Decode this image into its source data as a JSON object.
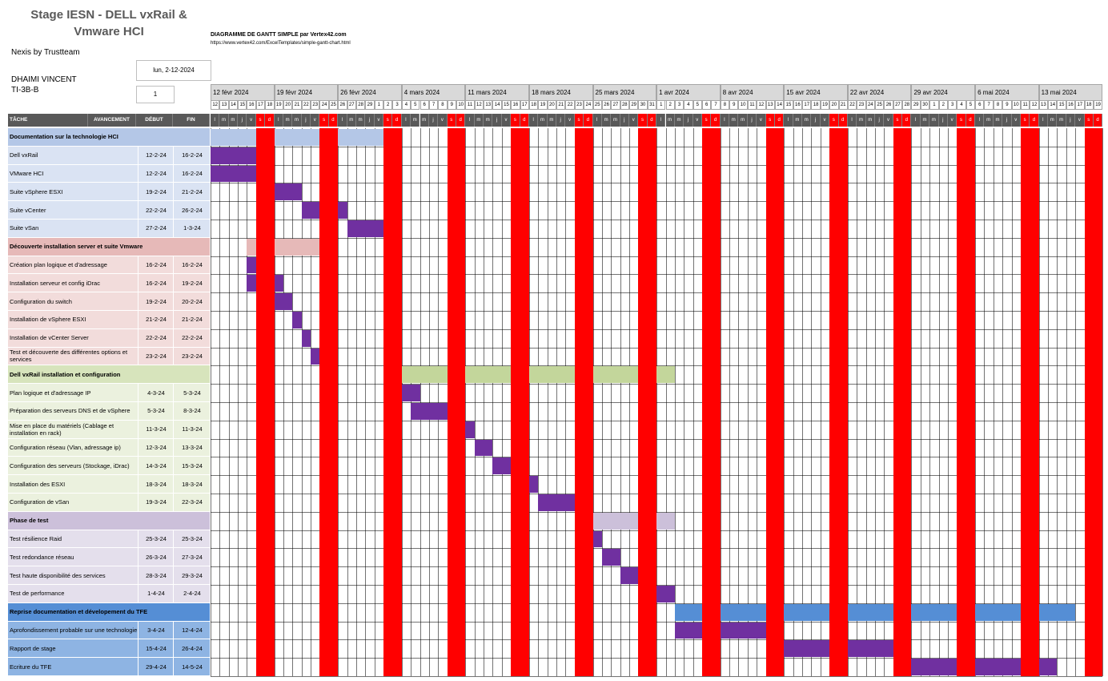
{
  "project": {
    "title_line1": "Stage IESN - DELL vxRail &",
    "title_line2": "Vmware HCI",
    "company": "Nexis by Trustteam",
    "lead": "DHAIMI VINCENT",
    "class": "TI-3B-B",
    "start_date": "lun, 2-12-2024",
    "week_offset": "1"
  },
  "template": {
    "title": "DIAGRAMME DE GANTT SIMPLE par Vertex42.com",
    "url": "https://www.vertex42.com/ExcelTemplates/simple-gantt-chart.html"
  },
  "headers": {
    "task": "TÂCHE",
    "progress": "AVANCEMENT",
    "start": "DÉBUT",
    "end": "FIN"
  },
  "weeks": [
    "12 févr 2024",
    "19 févr 2024",
    "26 févr 2024",
    "4 mars 2024",
    "11 mars 2024",
    "18 mars 2024",
    "25 mars 2024",
    "1 avr 2024",
    "8 avr 2024",
    "15 avr 2024",
    "22 avr 2024",
    "29 avr 2024",
    "6 mai 2024",
    "13 mai 2024"
  ],
  "day_numbers": [
    "12",
    "13",
    "14",
    "15",
    "16",
    "17",
    "18",
    "19",
    "20",
    "21",
    "22",
    "23",
    "24",
    "25",
    "26",
    "27",
    "28",
    "29",
    "1",
    "2",
    "3",
    "4",
    "5",
    "6",
    "7",
    "8",
    "9",
    "10",
    "11",
    "12",
    "13",
    "14",
    "15",
    "16",
    "17",
    "18",
    "19",
    "20",
    "21",
    "22",
    "23",
    "24",
    "25",
    "26",
    "27",
    "28",
    "29",
    "30",
    "31",
    "1",
    "2",
    "3",
    "4",
    "5",
    "6",
    "7",
    "8",
    "9",
    "10",
    "11",
    "12",
    "13",
    "14",
    "15",
    "16",
    "17",
    "18",
    "19",
    "20",
    "21",
    "22",
    "23",
    "24",
    "25",
    "26",
    "27",
    "28",
    "29",
    "30",
    "1",
    "2",
    "3",
    "4",
    "5",
    "6",
    "7",
    "8",
    "9",
    "10",
    "11",
    "12",
    "13",
    "14",
    "15",
    "16",
    "17",
    "18",
    "19"
  ],
  "day_letters": [
    "l",
    "m",
    "m",
    "j",
    "v",
    "s",
    "d"
  ],
  "colors": {
    "weekend": "#ff0000",
    "task_bar": "#7030a0",
    "header_dark": "#595959"
  },
  "rows": [
    {
      "kind": "phase",
      "name": "Documentation sur la technologie HCI",
      "bg": "#b4c7e7",
      "bar": "#b4c7e7",
      "start": 0,
      "end": 19
    },
    {
      "kind": "task",
      "name": "Dell vxRail",
      "start_label": "12-2-24",
      "end_label": "16-2-24",
      "bg": "#dae3f3",
      "start": 0,
      "end": 4
    },
    {
      "kind": "task",
      "name": "VMware HCI",
      "start_label": "12-2-24",
      "end_label": "16-2-24",
      "bg": "#dae3f3",
      "start": 0,
      "end": 4
    },
    {
      "kind": "task",
      "name": "Suite vSphere ESXI",
      "start_label": "19-2-24",
      "end_label": "21-2-24",
      "bg": "#dae3f3",
      "start": 7,
      "end": 9
    },
    {
      "kind": "task",
      "name": "Suite vCenter",
      "start_label": "22-2-24",
      "end_label": "26-2-24",
      "bg": "#dae3f3",
      "start": 10,
      "end": 14
    },
    {
      "kind": "task",
      "name": "Suite vSan",
      "start_label": "27-2-24",
      "end_label": "1-3-24",
      "bg": "#dae3f3",
      "start": 15,
      "end": 18
    },
    {
      "kind": "phase",
      "name": "Découverte installation server et suite Vmware",
      "bg": "#e6b9b8",
      "bar": "#e6b9b8",
      "start": 4,
      "end": 11
    },
    {
      "kind": "task",
      "name": "Création plan logique et d'adressage",
      "start_label": "16-2-24",
      "end_label": "16-2-24",
      "bg": "#f2dcdb",
      "start": 4,
      "end": 4
    },
    {
      "kind": "task",
      "name": "Installation serveur et config iDrac",
      "start_label": "16-2-24",
      "end_label": "19-2-24",
      "bg": "#f2dcdb",
      "start": 4,
      "end": 7
    },
    {
      "kind": "task",
      "name": "Configuration du switch",
      "start_label": "19-2-24",
      "end_label": "20-2-24",
      "bg": "#f2dcdb",
      "start": 7,
      "end": 8
    },
    {
      "kind": "task",
      "name": "Installation de vSphere ESXI",
      "start_label": "21-2-24",
      "end_label": "21-2-24",
      "bg": "#f2dcdb",
      "start": 9,
      "end": 9
    },
    {
      "kind": "task",
      "name": "Installation de vCenter Server",
      "start_label": "22-2-24",
      "end_label": "22-2-24",
      "bg": "#f2dcdb",
      "start": 10,
      "end": 10
    },
    {
      "kind": "task",
      "name": "Test et découverte des différentes options et services",
      "start_label": "23-2-24",
      "end_label": "23-2-24",
      "bg": "#f2dcdb",
      "start": 11,
      "end": 11
    },
    {
      "kind": "phase",
      "name": "Dell vxRail installation et configuration",
      "bg": "#d7e4bc",
      "bar": "#c3d69b",
      "start": 21,
      "end": 50
    },
    {
      "kind": "task",
      "name": "Plan logique et d'adressage IP",
      "start_label": "4-3-24",
      "end_label": "5-3-24",
      "bg": "#ebf1de",
      "start": 21,
      "end": 22
    },
    {
      "kind": "task",
      "name": "Préparation des serveurs DNS et de vSphere",
      "start_label": "5-3-24",
      "end_label": "8-3-24",
      "bg": "#ebf1de",
      "start": 22,
      "end": 25
    },
    {
      "kind": "task",
      "name": "Mise en place du matériels (Cablage et installation en rack)",
      "start_label": "11-3-24",
      "end_label": "11-3-24",
      "bg": "#ebf1de",
      "start": 28,
      "end": 28
    },
    {
      "kind": "task",
      "name": "Configuration réseau (Vlan, adressage ip)",
      "start_label": "12-3-24",
      "end_label": "13-3-24",
      "bg": "#ebf1de",
      "start": 29,
      "end": 30
    },
    {
      "kind": "task",
      "name": "Configuration des serveurs (Stockage, iDrac)",
      "start_label": "14-3-24",
      "end_label": "15-3-24",
      "bg": "#ebf1de",
      "start": 31,
      "end": 32
    },
    {
      "kind": "task",
      "name": "Installation des ESXI",
      "start_label": "18-3-24",
      "end_label": "18-3-24",
      "bg": "#ebf1de",
      "start": 35,
      "end": 35
    },
    {
      "kind": "task",
      "name": "Configuration de vSan",
      "start_label": "19-3-24",
      "end_label": "22-3-24",
      "bg": "#ebf1de",
      "start": 36,
      "end": 39
    },
    {
      "kind": "phase",
      "name": "Phase de test",
      "bg": "#ccc0da",
      "bar": "#ccc0da",
      "start": 42,
      "end": 50
    },
    {
      "kind": "task",
      "name": "Test résilience Raid",
      "start_label": "25-3-24",
      "end_label": "25-3-24",
      "bg": "#e4dfec",
      "start": 42,
      "end": 42
    },
    {
      "kind": "task",
      "name": "Test redondance réseau",
      "start_label": "26-3-24",
      "end_label": "27-3-24",
      "bg": "#e4dfec",
      "start": 43,
      "end": 44
    },
    {
      "kind": "task",
      "name": "Test haute disponibilité des services",
      "start_label": "28-3-24",
      "end_label": "29-3-24",
      "bg": "#e4dfec",
      "start": 45,
      "end": 46
    },
    {
      "kind": "task",
      "name": "Test de performance",
      "start_label": "1-4-24",
      "end_label": "2-4-24",
      "bg": "#e4dfec",
      "start": 49,
      "end": 50
    },
    {
      "kind": "phase",
      "name": "Reprise documentation et dévelopement du TFE",
      "bg": "#558ed5",
      "bar": "#558ed5",
      "start": 51,
      "end": 94
    },
    {
      "kind": "task",
      "name": "Aprofondissement probable sur une technologie",
      "start_label": "3-4-24",
      "end_label": "12-4-24",
      "bg": "#8eb4e3",
      "start": 51,
      "end": 60
    },
    {
      "kind": "task",
      "name": "Rapport de stage",
      "start_label": "15-4-24",
      "end_label": "26-4-24",
      "bg": "#8eb4e3",
      "start": 63,
      "end": 74
    },
    {
      "kind": "task",
      "name": "Ecriture du TFE",
      "start_label": "29-4-24",
      "end_label": "14-5-24",
      "bg": "#8eb4e3",
      "start": 77,
      "end": 92
    }
  ]
}
